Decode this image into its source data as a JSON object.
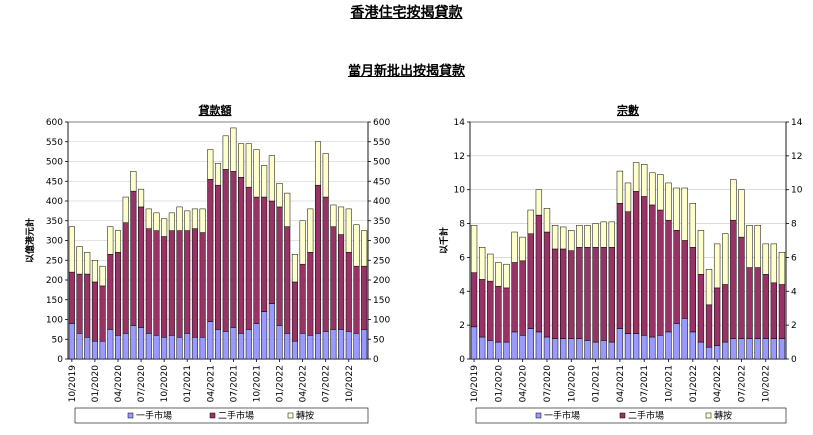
{
  "main_title": "香港住宅按揭貸款",
  "sub_title": "當月新批出按揭貸款",
  "colors": {
    "first_hand": "#9999ff",
    "secondary": "#993366",
    "refinance": "#ffffcc",
    "stroke": "#000000"
  },
  "chart_data": [
    {
      "type": "bar",
      "stacked": true,
      "title": "貸款額",
      "ylabel": "以億港元計",
      "ylim": [
        0,
        600
      ],
      "yticks": [
        "0",
        "50",
        "100",
        "150",
        "200",
        "250",
        "300",
        "350",
        "400",
        "450",
        "500",
        "550",
        "600"
      ],
      "right_axis": true,
      "x_tick_labels": [
        "10/2019",
        "01/2020",
        "04/2020",
        "07/2020",
        "10/2020",
        "01/2021",
        "04/2021",
        "07/2021",
        "10/2021",
        "01/2022",
        "04/2022",
        "07/2022",
        "10/2022"
      ],
      "legend": [
        "一手市場",
        "二手市場",
        "轉按"
      ],
      "legend_position": "bottom",
      "series": [
        {
          "name": "一手市場",
          "values": [
            90,
            65,
            55,
            45,
            45,
            75,
            60,
            65,
            85,
            80,
            65,
            60,
            55,
            60,
            55,
            65,
            55,
            55,
            95,
            75,
            70,
            80,
            65,
            75,
            90,
            120,
            140,
            85,
            65,
            45,
            65,
            60,
            65,
            70,
            75,
            75,
            70,
            65,
            75
          ]
        },
        {
          "name": "二手市場",
          "values": [
            130,
            150,
            160,
            150,
            140,
            190,
            210,
            280,
            340,
            305,
            265,
            265,
            255,
            265,
            270,
            260,
            275,
            265,
            360,
            365,
            410,
            395,
            395,
            360,
            320,
            290,
            260,
            300,
            270,
            150,
            175,
            210,
            375,
            340,
            260,
            240,
            200,
            170,
            160
          ]
        },
        {
          "name": "轉按",
          "values": [
            115,
            70,
            55,
            55,
            50,
            70,
            55,
            65,
            50,
            45,
            50,
            45,
            45,
            45,
            60,
            50,
            50,
            60,
            75,
            55,
            85,
            110,
            85,
            110,
            120,
            80,
            115,
            60,
            85,
            70,
            110,
            110,
            110,
            110,
            55,
            70,
            110,
            105,
            90
          ]
        }
      ]
    },
    {
      "type": "bar",
      "stacked": true,
      "title": "宗數",
      "ylabel": "以千計",
      "ylim": [
        0,
        14
      ],
      "yticks": [
        "0",
        "2",
        "4",
        "6",
        "8",
        "10",
        "12",
        "14"
      ],
      "right_axis": true,
      "x_tick_labels": [
        "10/2019",
        "01/2020",
        "04/2020",
        "07/2020",
        "10/2020",
        "01/2021",
        "04/2021",
        "07/2021",
        "10/2021",
        "01/2022",
        "04/2022",
        "07/2022",
        "10/2022"
      ],
      "legend": [
        "一手市場",
        "二手市場",
        "轉按"
      ],
      "legend_position": "bottom",
      "series": [
        {
          "name": "一手市場",
          "values": [
            1.9,
            1.3,
            1.1,
            1.0,
            1.0,
            1.6,
            1.4,
            1.8,
            1.6,
            1.3,
            1.2,
            1.2,
            1.2,
            1.2,
            1.1,
            1.0,
            1.1,
            1.0,
            1.8,
            1.5,
            1.5,
            1.4,
            1.3,
            1.4,
            1.6,
            2.1,
            2.4,
            1.6,
            1.0,
            0.7,
            0.8,
            1.0,
            1.2,
            1.2,
            1.2,
            1.2,
            1.2,
            1.2,
            1.2
          ]
        },
        {
          "name": "二手市場",
          "values": [
            3.2,
            3.4,
            3.5,
            3.3,
            3.2,
            4.1,
            4.4,
            5.6,
            6.9,
            6.2,
            5.3,
            5.3,
            5.2,
            5.4,
            5.5,
            5.6,
            5.5,
            5.6,
            7.4,
            7.2,
            8.4,
            8.2,
            7.8,
            7.4,
            6.6,
            5.5,
            4.6,
            5.0,
            4.0,
            2.5,
            3.4,
            3.4,
            7.0,
            6.0,
            4.2,
            4.2,
            3.8,
            3.3,
            3.2
          ]
        },
        {
          "name": "轉按",
          "values": [
            2.8,
            1.9,
            1.6,
            1.4,
            1.4,
            1.8,
            1.4,
            1.4,
            1.5,
            1.4,
            1.4,
            1.3,
            1.2,
            1.3,
            1.3,
            1.4,
            1.5,
            1.5,
            1.9,
            1.7,
            1.7,
            1.9,
            1.9,
            2.1,
            2.2,
            2.5,
            3.1,
            2.6,
            2.6,
            2.1,
            2.6,
            3.0,
            2.4,
            2.8,
            2.5,
            2.5,
            1.8,
            2.3,
            1.9
          ]
        }
      ]
    }
  ]
}
